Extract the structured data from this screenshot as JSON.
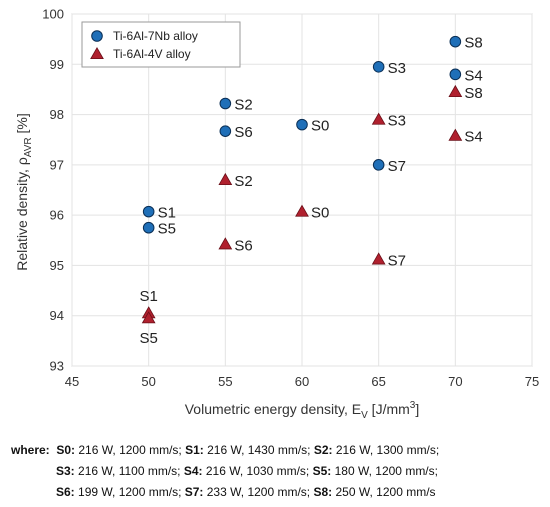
{
  "chart_data": {
    "type": "scatter",
    "xlabel": "Volumetric energy density, E",
    "xlabel_sub": "V",
    "xlabel_unit": " [J/mm",
    "xlabel_sup": "3",
    "xlabel_close": "]",
    "ylabel": "Relative density, ρ",
    "ylabel_sub": "AVR",
    "ylabel_unit": " [%]",
    "xlim": [
      45,
      75
    ],
    "ylim": [
      93,
      100
    ],
    "xticks": [
      "45",
      "50",
      "55",
      "60",
      "65",
      "70",
      "75"
    ],
    "yticks": [
      "93",
      "94",
      "95",
      "96",
      "97",
      "98",
      "99",
      "100"
    ],
    "grid": true,
    "legend_position": "top-left",
    "series": [
      {
        "name": "Ti-6Al-7Nb alloy",
        "marker": "circle",
        "color": "#1f6fb8",
        "points": [
          {
            "x": 50,
            "y": 96.07,
            "label": "S1"
          },
          {
            "x": 50,
            "y": 95.75,
            "label": "S5"
          },
          {
            "x": 55,
            "y": 98.22,
            "label": "S2"
          },
          {
            "x": 55,
            "y": 97.67,
            "label": "S6"
          },
          {
            "x": 60,
            "y": 97.8,
            "label": "S0"
          },
          {
            "x": 65,
            "y": 98.95,
            "label": "S3"
          },
          {
            "x": 65,
            "y": 97.0,
            "label": "S7"
          },
          {
            "x": 70,
            "y": 99.45,
            "label": "S8"
          },
          {
            "x": 70,
            "y": 98.8,
            "label": "S4"
          }
        ]
      },
      {
        "name": "Ti-6Al-4V alloy",
        "marker": "triangle",
        "color": "#b0202e",
        "points": [
          {
            "x": 50,
            "y": 94.05,
            "label": "S1"
          },
          {
            "x": 50,
            "y": 93.95,
            "label": "S5"
          },
          {
            "x": 55,
            "y": 96.7,
            "label": "S2"
          },
          {
            "x": 55,
            "y": 95.42,
            "label": "S6"
          },
          {
            "x": 60,
            "y": 96.07,
            "label": "S0"
          },
          {
            "x": 65,
            "y": 97.9,
            "label": "S3"
          },
          {
            "x": 65,
            "y": 95.12,
            "label": "S7"
          },
          {
            "x": 70,
            "y": 98.45,
            "label": "S8"
          },
          {
            "x": 70,
            "y": 97.58,
            "label": "S4"
          }
        ]
      }
    ]
  },
  "where": {
    "prefix": "where:",
    "items": [
      {
        "key": "S0:",
        "value": " 216 W, 1200 mm/s; "
      },
      {
        "key": "S1:",
        "value": " 216 W, 1430 mm/s; "
      },
      {
        "key": "S2:",
        "value": " 216 W, 1300 mm/s;"
      },
      {
        "key": "S3:",
        "value": " 216 W, 1100 mm/s; "
      },
      {
        "key": "S4:",
        "value": " 216 W, 1030 mm/s; "
      },
      {
        "key": "S5:",
        "value": " 180 W, 1200 mm/s;"
      },
      {
        "key": "S6:",
        "value": " 199 W, 1200 mm/s; "
      },
      {
        "key": "S7:",
        "value": " 233 W, 1200 mm/s; "
      },
      {
        "key": "S8:",
        "value": " 250 W, 1200 mm/s"
      }
    ]
  }
}
